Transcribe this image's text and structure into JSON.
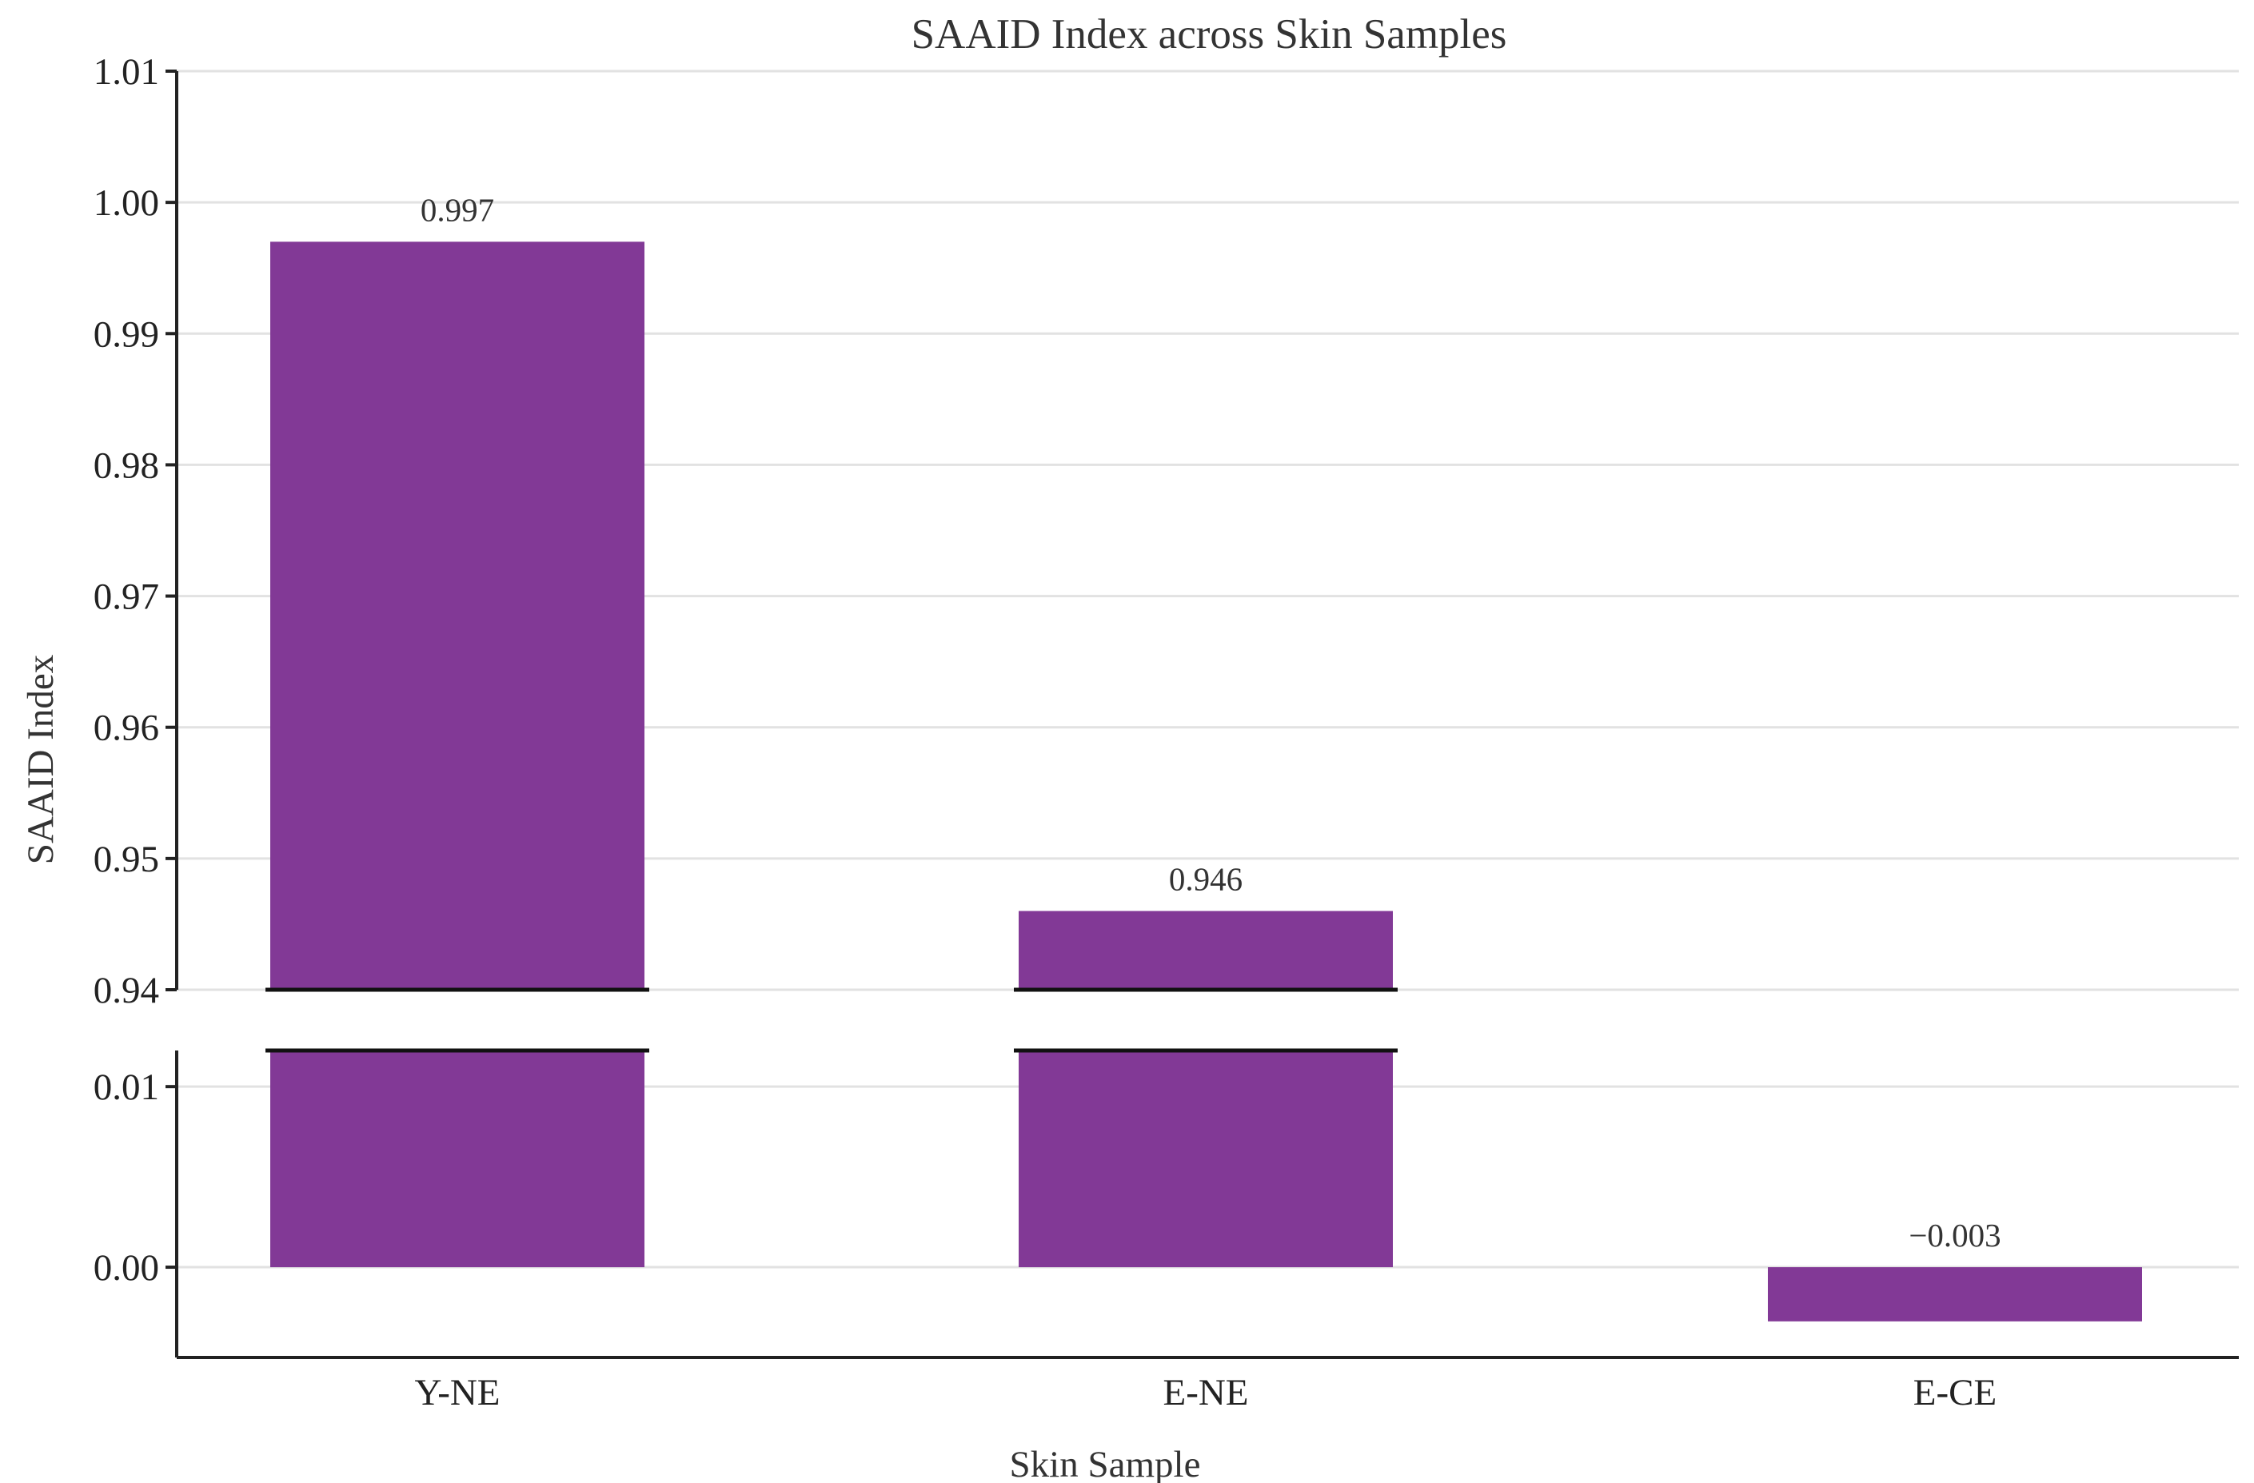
{
  "chart_data": {
    "type": "bar",
    "title": "SAAID Index across Skin Samples",
    "xlabel": "Skin Sample",
    "ylabel": "SAAID Index",
    "categories": [
      "Y-NE",
      "E-NE",
      "E-CE"
    ],
    "values": [
      0.997,
      0.946,
      -0.003
    ],
    "value_labels": [
      "0.997",
      "0.946",
      "−0.003"
    ],
    "bar_color": "#823996",
    "broken_axis": true,
    "upper_panel": {
      "ylim": [
        0.94,
        1.01
      ],
      "ticks": [
        0.94,
        0.95,
        0.96,
        0.97,
        0.98,
        0.99,
        1.0,
        1.01
      ],
      "tick_labels": [
        "0.94",
        "0.95",
        "0.96",
        "0.97",
        "0.98",
        "0.99",
        "1.00",
        "1.01"
      ]
    },
    "lower_panel": {
      "ylim": [
        -0.005,
        0.012
      ],
      "ticks": [
        0.0,
        0.01
      ],
      "tick_labels": [
        "0.00",
        "0.01"
      ]
    },
    "grid": true
  }
}
